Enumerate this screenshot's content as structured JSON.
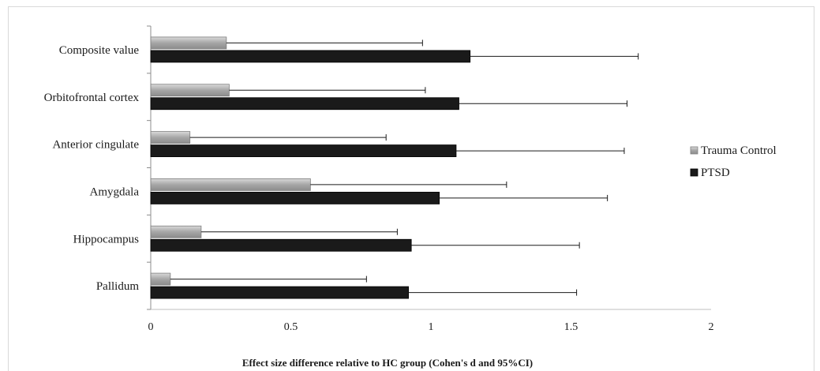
{
  "chart_data": {
    "type": "bar",
    "orientation": "horizontal",
    "categories": [
      "Composite value",
      "Orbitofrontal cortex",
      "Anterior cingulate",
      "Amygdala",
      "Hippocampus",
      "Pallidum"
    ],
    "series": [
      {
        "name": "Trauma Control",
        "color": "#a6a6a6",
        "values": [
          0.27,
          0.28,
          0.14,
          0.57,
          0.18,
          0.07
        ],
        "ci_upper": [
          0.97,
          0.98,
          0.84,
          1.27,
          0.88,
          0.77
        ]
      },
      {
        "name": "PTSD",
        "color": "#1a1a1a",
        "values": [
          1.14,
          1.1,
          1.09,
          1.03,
          0.93,
          0.92
        ],
        "ci_upper": [
          1.74,
          1.7,
          1.69,
          1.63,
          1.53,
          1.52
        ]
      }
    ],
    "xlabel": "Effect size difference relative to HC group (Cohen's d and 95%CI)",
    "ylabel": "",
    "xlim": [
      0,
      2
    ],
    "x_ticks": [
      "0",
      "0.5",
      "1",
      "1.5",
      "2"
    ],
    "grid": false,
    "legend_position": "right"
  }
}
